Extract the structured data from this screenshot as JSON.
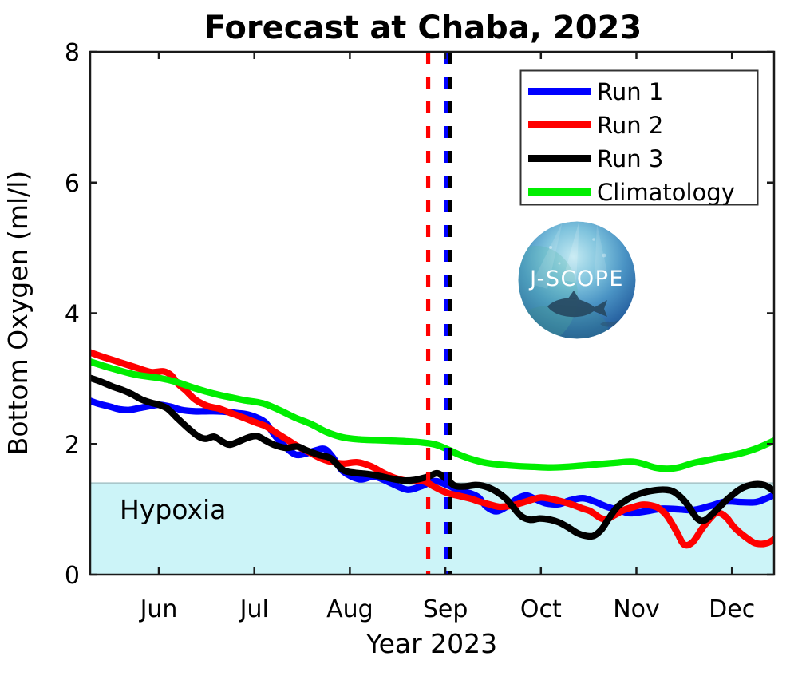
{
  "title": "Forecast at Chaba, 2023",
  "axes": {
    "xlabel": "Year 2023",
    "ylabel": "Bottom Oxygen (ml/l)",
    "x_ticks": [
      "Jun",
      "Jul",
      "Aug",
      "Sep",
      "Oct",
      "Nov",
      "Dec"
    ],
    "y_ticks": [
      "0",
      "2",
      "4",
      "6",
      "8"
    ]
  },
  "hypoxia": {
    "label": "Hypoxia",
    "threshold_mll": 1.4,
    "fill_color": "#ccf4f8",
    "edge_color": "#a9c7cb"
  },
  "legend": {
    "items": [
      {
        "label": "Run 1",
        "color": "#0000ff"
      },
      {
        "label": "Run 2",
        "color": "#ff0000"
      },
      {
        "label": "Run 3",
        "color": "#000000"
      },
      {
        "label": "Climatology",
        "color": "#00ee00"
      }
    ]
  },
  "logo": {
    "text": "J-SCOPE"
  },
  "chart_data": {
    "type": "line",
    "title": "Forecast at Chaba, 2023",
    "xlabel": "Year 2023",
    "ylabel": "Bottom Oxygen (ml/l)",
    "x_unit": "months after Jun 1, 2023 (Jun=0 ... Dec=6)",
    "xlim": [
      -0.72,
      6.44
    ],
    "ylim": [
      0,
      8
    ],
    "y_tick_values": [
      0,
      2,
      4,
      6,
      8
    ],
    "x_tick_values": [
      0,
      1,
      2,
      3,
      4,
      5,
      6
    ],
    "grid": false,
    "legend_position": "upper right",
    "hypoxia_threshold": 1.4,
    "vlines": [
      {
        "name": "forecast-start-run2",
        "x": 2.82,
        "color": "#ff0000",
        "style": "dashed"
      },
      {
        "name": "forecast-start-run1",
        "x": 3.01,
        "color": "#0000ff",
        "style": "dashed"
      },
      {
        "name": "forecast-start-run3",
        "x": 3.05,
        "color": "#000000",
        "style": "dashed"
      }
    ],
    "series": [
      {
        "name": "Run 1",
        "color": "#0000ff",
        "points": [
          [
            -0.72,
            2.66
          ],
          [
            -0.62,
            2.61
          ],
          [
            -0.51,
            2.57
          ],
          [
            -0.41,
            2.53
          ],
          [
            -0.31,
            2.52
          ],
          [
            -0.2,
            2.55
          ],
          [
            -0.09,
            2.58
          ],
          [
            0.0,
            2.6
          ],
          [
            0.12,
            2.57
          ],
          [
            0.24,
            2.52
          ],
          [
            0.37,
            2.5
          ],
          [
            0.49,
            2.5
          ],
          [
            0.61,
            2.5
          ],
          [
            0.72,
            2.49
          ],
          [
            0.83,
            2.47
          ],
          [
            0.93,
            2.45
          ],
          [
            1.03,
            2.4
          ],
          [
            1.12,
            2.32
          ],
          [
            1.22,
            2.12
          ],
          [
            1.33,
            1.95
          ],
          [
            1.43,
            1.84
          ],
          [
            1.53,
            1.85
          ],
          [
            1.64,
            1.9
          ],
          [
            1.74,
            1.92
          ],
          [
            1.83,
            1.78
          ],
          [
            1.93,
            1.58
          ],
          [
            2.1,
            1.46
          ],
          [
            2.26,
            1.5
          ],
          [
            2.43,
            1.4
          ],
          [
            2.6,
            1.3
          ],
          [
            2.74,
            1.35
          ],
          [
            2.89,
            1.43
          ],
          [
            3.02,
            1.37
          ],
          [
            3.14,
            1.29
          ],
          [
            3.27,
            1.24
          ],
          [
            3.35,
            1.18
          ],
          [
            3.43,
            1.04
          ],
          [
            3.53,
            0.97
          ],
          [
            3.64,
            1.04
          ],
          [
            3.75,
            1.16
          ],
          [
            3.85,
            1.21
          ],
          [
            3.95,
            1.15
          ],
          [
            4.06,
            1.09
          ],
          [
            4.19,
            1.08
          ],
          [
            4.31,
            1.14
          ],
          [
            4.44,
            1.17
          ],
          [
            4.56,
            1.12
          ],
          [
            4.69,
            1.04
          ],
          [
            4.85,
            0.97
          ],
          [
            4.94,
            0.94
          ],
          [
            5.1,
            0.97
          ],
          [
            5.27,
            1.01
          ],
          [
            5.44,
            1.0
          ],
          [
            5.6,
            0.99
          ],
          [
            5.77,
            1.05
          ],
          [
            5.94,
            1.12
          ],
          [
            6.1,
            1.11
          ],
          [
            6.25,
            1.11
          ],
          [
            6.35,
            1.16
          ],
          [
            6.44,
            1.22
          ]
        ]
      },
      {
        "name": "Run 2",
        "color": "#ff0000",
        "points": [
          [
            -0.72,
            3.4
          ],
          [
            -0.58,
            3.33
          ],
          [
            -0.41,
            3.25
          ],
          [
            -0.24,
            3.17
          ],
          [
            -0.08,
            3.1
          ],
          [
            0.05,
            3.11
          ],
          [
            0.13,
            3.05
          ],
          [
            0.2,
            2.92
          ],
          [
            0.28,
            2.82
          ],
          [
            0.38,
            2.68
          ],
          [
            0.51,
            2.58
          ],
          [
            0.63,
            2.54
          ],
          [
            0.76,
            2.47
          ],
          [
            0.89,
            2.4
          ],
          [
            1.01,
            2.33
          ],
          [
            1.12,
            2.27
          ],
          [
            1.22,
            2.18
          ],
          [
            1.35,
            2.06
          ],
          [
            1.47,
            1.95
          ],
          [
            1.58,
            1.87
          ],
          [
            1.68,
            1.79
          ],
          [
            1.8,
            1.73
          ],
          [
            1.93,
            1.7
          ],
          [
            2.08,
            1.72
          ],
          [
            2.22,
            1.66
          ],
          [
            2.36,
            1.55
          ],
          [
            2.49,
            1.47
          ],
          [
            2.62,
            1.43
          ],
          [
            2.77,
            1.43
          ],
          [
            2.89,
            1.34
          ],
          [
            3.02,
            1.25
          ],
          [
            3.16,
            1.2
          ],
          [
            3.27,
            1.16
          ],
          [
            3.35,
            1.12
          ],
          [
            3.45,
            1.08
          ],
          [
            3.56,
            1.04
          ],
          [
            3.67,
            1.05
          ],
          [
            3.78,
            1.09
          ],
          [
            3.89,
            1.14
          ],
          [
            4.0,
            1.18
          ],
          [
            4.1,
            1.16
          ],
          [
            4.19,
            1.13
          ],
          [
            4.31,
            1.08
          ],
          [
            4.44,
            1.01
          ],
          [
            4.52,
            0.97
          ],
          [
            4.62,
            0.87
          ],
          [
            4.69,
            0.85
          ],
          [
            4.77,
            0.91
          ],
          [
            4.87,
            0.99
          ],
          [
            4.98,
            1.04
          ],
          [
            5.06,
            1.07
          ],
          [
            5.15,
            1.06
          ],
          [
            5.23,
            1.02
          ],
          [
            5.32,
            0.9
          ],
          [
            5.42,
            0.66
          ],
          [
            5.5,
            0.46
          ],
          [
            5.59,
            0.5
          ],
          [
            5.69,
            0.71
          ],
          [
            5.79,
            0.89
          ],
          [
            5.85,
            0.95
          ],
          [
            5.94,
            0.88
          ],
          [
            6.02,
            0.73
          ],
          [
            6.12,
            0.6
          ],
          [
            6.23,
            0.49
          ],
          [
            6.31,
            0.47
          ],
          [
            6.38,
            0.49
          ],
          [
            6.44,
            0.54
          ]
        ]
      },
      {
        "name": "Run 3",
        "color": "#000000",
        "points": [
          [
            -0.72,
            3.01
          ],
          [
            -0.62,
            2.96
          ],
          [
            -0.49,
            2.88
          ],
          [
            -0.39,
            2.83
          ],
          [
            -0.28,
            2.76
          ],
          [
            -0.18,
            2.68
          ],
          [
            -0.08,
            2.63
          ],
          [
            0.0,
            2.6
          ],
          [
            0.09,
            2.54
          ],
          [
            0.19,
            2.4
          ],
          [
            0.3,
            2.25
          ],
          [
            0.41,
            2.12
          ],
          [
            0.49,
            2.08
          ],
          [
            0.58,
            2.11
          ],
          [
            0.66,
            2.04
          ],
          [
            0.74,
            1.99
          ],
          [
            0.84,
            2.04
          ],
          [
            0.94,
            2.1
          ],
          [
            1.03,
            2.12
          ],
          [
            1.12,
            2.05
          ],
          [
            1.22,
            1.98
          ],
          [
            1.33,
            1.94
          ],
          [
            1.45,
            1.96
          ],
          [
            1.55,
            1.9
          ],
          [
            1.68,
            1.83
          ],
          [
            1.8,
            1.78
          ],
          [
            1.93,
            1.6
          ],
          [
            2.05,
            1.56
          ],
          [
            2.18,
            1.54
          ],
          [
            2.31,
            1.51
          ],
          [
            2.43,
            1.47
          ],
          [
            2.56,
            1.44
          ],
          [
            2.68,
            1.45
          ],
          [
            2.82,
            1.5
          ],
          [
            2.92,
            1.55
          ],
          [
            3.02,
            1.45
          ],
          [
            3.1,
            1.36
          ],
          [
            3.2,
            1.35
          ],
          [
            3.31,
            1.37
          ],
          [
            3.39,
            1.36
          ],
          [
            3.5,
            1.3
          ],
          [
            3.62,
            1.18
          ],
          [
            3.7,
            1.05
          ],
          [
            3.79,
            0.9
          ],
          [
            3.89,
            0.84
          ],
          [
            3.99,
            0.86
          ],
          [
            4.1,
            0.84
          ],
          [
            4.19,
            0.8
          ],
          [
            4.29,
            0.72
          ],
          [
            4.39,
            0.63
          ],
          [
            4.49,
            0.59
          ],
          [
            4.56,
            0.6
          ],
          [
            4.64,
            0.7
          ],
          [
            4.72,
            0.88
          ],
          [
            4.81,
            1.05
          ],
          [
            4.94,
            1.18
          ],
          [
            5.06,
            1.25
          ],
          [
            5.19,
            1.29
          ],
          [
            5.3,
            1.3
          ],
          [
            5.4,
            1.26
          ],
          [
            5.52,
            1.1
          ],
          [
            5.63,
            0.87
          ],
          [
            5.71,
            0.83
          ],
          [
            5.81,
            0.95
          ],
          [
            5.9,
            1.08
          ],
          [
            5.98,
            1.19
          ],
          [
            6.1,
            1.32
          ],
          [
            6.23,
            1.38
          ],
          [
            6.34,
            1.37
          ],
          [
            6.44,
            1.28
          ]
        ]
      },
      {
        "name": "Climatology",
        "color": "#00ee00",
        "points": [
          [
            -0.72,
            3.26
          ],
          [
            -0.5,
            3.16
          ],
          [
            -0.24,
            3.06
          ],
          [
            0.0,
            3.01
          ],
          [
            0.18,
            2.95
          ],
          [
            0.34,
            2.87
          ],
          [
            0.5,
            2.8
          ],
          [
            0.63,
            2.75
          ],
          [
            0.76,
            2.71
          ],
          [
            0.89,
            2.67
          ],
          [
            1.09,
            2.62
          ],
          [
            1.26,
            2.52
          ],
          [
            1.43,
            2.4
          ],
          [
            1.6,
            2.3
          ],
          [
            1.76,
            2.18
          ],
          [
            1.93,
            2.1
          ],
          [
            2.1,
            2.07
          ],
          [
            2.26,
            2.06
          ],
          [
            2.43,
            2.05
          ],
          [
            2.6,
            2.04
          ],
          [
            2.77,
            2.02
          ],
          [
            2.9,
            1.99
          ],
          [
            3.02,
            1.92
          ],
          [
            3.14,
            1.84
          ],
          [
            3.27,
            1.77
          ],
          [
            3.43,
            1.71
          ],
          [
            3.6,
            1.68
          ],
          [
            3.77,
            1.66
          ],
          [
            3.93,
            1.65
          ],
          [
            4.1,
            1.64
          ],
          [
            4.27,
            1.65
          ],
          [
            4.44,
            1.67
          ],
          [
            4.6,
            1.69
          ],
          [
            4.77,
            1.71
          ],
          [
            4.94,
            1.73
          ],
          [
            5.06,
            1.7
          ],
          [
            5.19,
            1.64
          ],
          [
            5.32,
            1.62
          ],
          [
            5.44,
            1.64
          ],
          [
            5.6,
            1.71
          ],
          [
            5.77,
            1.76
          ],
          [
            5.94,
            1.81
          ],
          [
            6.1,
            1.86
          ],
          [
            6.27,
            1.94
          ],
          [
            6.44,
            2.05
          ]
        ]
      }
    ]
  }
}
